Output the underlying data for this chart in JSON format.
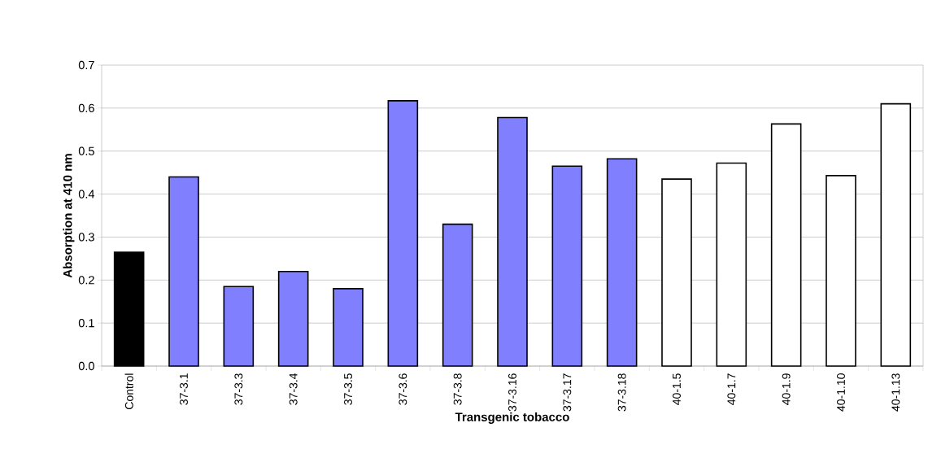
{
  "chart_data": {
    "type": "bar",
    "xlabel": "Transgenic tobacco",
    "ylabel": "Absorption at 410 nm",
    "categories": [
      "Control",
      "37-3.1",
      "37-3.3",
      "37-3.4",
      "37-3.5",
      "37-3.6",
      "37-3.8",
      "37-3.16",
      "37-3.17",
      "37-3.18",
      "40-1.5",
      "40-1.7",
      "40-1.9",
      "40-1.10",
      "40-1.13"
    ],
    "values": [
      0.265,
      0.44,
      0.185,
      0.22,
      0.18,
      0.617,
      0.33,
      0.578,
      0.465,
      0.482,
      0.435,
      0.472,
      0.563,
      0.443,
      0.61
    ],
    "colors": [
      "#000000",
      "#8080ff",
      "#8080ff",
      "#8080ff",
      "#8080ff",
      "#8080ff",
      "#8080ff",
      "#8080ff",
      "#8080ff",
      "#8080ff",
      "#ffffff",
      "#ffffff",
      "#ffffff",
      "#ffffff",
      "#ffffff"
    ],
    "ylim": [
      0,
      0.7
    ],
    "yticks": [
      {
        "value": 0,
        "label": "0.0"
      },
      {
        "value": 0.1,
        "label": "0.1"
      },
      {
        "value": 0.2,
        "label": "0.2"
      },
      {
        "value": 0.3,
        "label": "0.3"
      },
      {
        "value": 0.4,
        "label": "0.4"
      },
      {
        "value": 0.5,
        "label": "0.5"
      },
      {
        "value": 0.6,
        "label": "0.6"
      },
      {
        "value": 0.7,
        "label": "0.7"
      }
    ],
    "grid": "y"
  }
}
